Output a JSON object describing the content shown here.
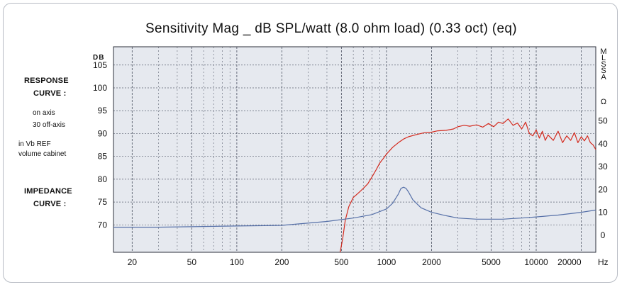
{
  "chart_data": {
    "type": "line",
    "title": "Sensitivity Mag _ dB SPL/watt (8.0 ohm load) (0.33 oct) (eq)",
    "xlabel": "Hz",
    "ylabel_left": "DB",
    "ylabel_right": "MLSSA",
    "ohm_symbol": "Ω",
    "x_scale": "log",
    "xlim": [
      15,
      25000
    ],
    "ylim": [
      64,
      109
    ],
    "ylim_right": [
      -7.5,
      82.5
    ],
    "x_ticks": [
      {
        "value": 20,
        "label": "20"
      },
      {
        "value": 50,
        "label": "50"
      },
      {
        "value": 100,
        "label": "100"
      },
      {
        "value": 200,
        "label": "200"
      },
      {
        "value": 500,
        "label": "500"
      },
      {
        "value": 1000,
        "label": "1000"
      },
      {
        "value": 2000,
        "label": "2000"
      },
      {
        "value": 5000,
        "label": "5000"
      },
      {
        "value": 10000,
        "label": "10000"
      },
      {
        "value": 20000,
        "label": "20000"
      }
    ],
    "y_ticks": [
      70,
      75,
      80,
      85,
      90,
      95,
      100,
      105
    ],
    "y_ticks_right": [
      0,
      10,
      20,
      30,
      40,
      50
    ],
    "grid": true,
    "series": [
      {
        "name": "Response curve (on axis)",
        "axis": "left",
        "color": "#d42a1e",
        "points": [
          [
            490,
            64
          ],
          [
            510,
            67
          ],
          [
            530,
            71
          ],
          [
            560,
            74
          ],
          [
            600,
            76
          ],
          [
            650,
            77
          ],
          [
            700,
            78
          ],
          [
            750,
            79
          ],
          [
            800,
            80.5
          ],
          [
            850,
            82
          ],
          [
            900,
            83.5
          ],
          [
            950,
            84.5
          ],
          [
            1000,
            85.5
          ],
          [
            1100,
            87
          ],
          [
            1200,
            88
          ],
          [
            1300,
            88.8
          ],
          [
            1400,
            89.3
          ],
          [
            1600,
            89.8
          ],
          [
            1800,
            90.2
          ],
          [
            2000,
            90.3
          ],
          [
            2200,
            90.6
          ],
          [
            2500,
            90.7
          ],
          [
            2800,
            91
          ],
          [
            3000,
            91.5
          ],
          [
            3300,
            91.8
          ],
          [
            3600,
            91.6
          ],
          [
            4000,
            91.9
          ],
          [
            4400,
            91.4
          ],
          [
            4800,
            92.2
          ],
          [
            5200,
            91.5
          ],
          [
            5600,
            92.5
          ],
          [
            6000,
            92.2
          ],
          [
            6500,
            93.2
          ],
          [
            7000,
            91.8
          ],
          [
            7500,
            92.3
          ],
          [
            8000,
            91
          ],
          [
            8500,
            92.5
          ],
          [
            9000,
            90
          ],
          [
            9500,
            89.5
          ],
          [
            10000,
            90.8
          ],
          [
            10500,
            89
          ],
          [
            11000,
            90.5
          ],
          [
            11500,
            88.5
          ],
          [
            12000,
            89.7
          ],
          [
            13000,
            88.5
          ],
          [
            14000,
            90.5
          ],
          [
            15000,
            88
          ],
          [
            16000,
            89.5
          ],
          [
            17000,
            88.5
          ],
          [
            18000,
            90.2
          ],
          [
            19000,
            88
          ],
          [
            20000,
            89.3
          ],
          [
            21000,
            88.4
          ],
          [
            22000,
            89.5
          ],
          [
            23000,
            88
          ],
          [
            24000,
            87.5
          ],
          [
            25000,
            86.5
          ]
        ]
      },
      {
        "name": "Impedance curve",
        "axis": "right",
        "color": "#5670a8",
        "points": [
          [
            15,
            3.5
          ],
          [
            20,
            3.5
          ],
          [
            30,
            3.5
          ],
          [
            50,
            3.7
          ],
          [
            100,
            4
          ],
          [
            200,
            4.3
          ],
          [
            400,
            6
          ],
          [
            600,
            7.5
          ],
          [
            800,
            9
          ],
          [
            1000,
            11.5
          ],
          [
            1100,
            14
          ],
          [
            1200,
            18
          ],
          [
            1250,
            20.5
          ],
          [
            1300,
            21
          ],
          [
            1350,
            20.5
          ],
          [
            1400,
            19
          ],
          [
            1500,
            15.5
          ],
          [
            1700,
            12
          ],
          [
            2000,
            10
          ],
          [
            2500,
            8.5
          ],
          [
            3000,
            7.5
          ],
          [
            4000,
            7
          ],
          [
            5000,
            7
          ],
          [
            6000,
            7
          ],
          [
            7000,
            7.3
          ],
          [
            8000,
            7.5
          ],
          [
            10000,
            8
          ],
          [
            14000,
            8.8
          ],
          [
            20000,
            10
          ],
          [
            25000,
            11
          ]
        ]
      }
    ]
  },
  "labels": {
    "response_1": "RESPONSE",
    "response_2": "CURVE :",
    "on_axis": "on axis",
    "off_axis": "30  off-axis",
    "vb_ref": "in Vb REF",
    "volume": "volume cabinet",
    "impedance_1": "IMPEDANCE",
    "impedance_2": "CURVE :"
  },
  "colors": {
    "plot_background": "#e6e9ef",
    "grid": "#5b6170",
    "axis": "#2a2e38"
  }
}
